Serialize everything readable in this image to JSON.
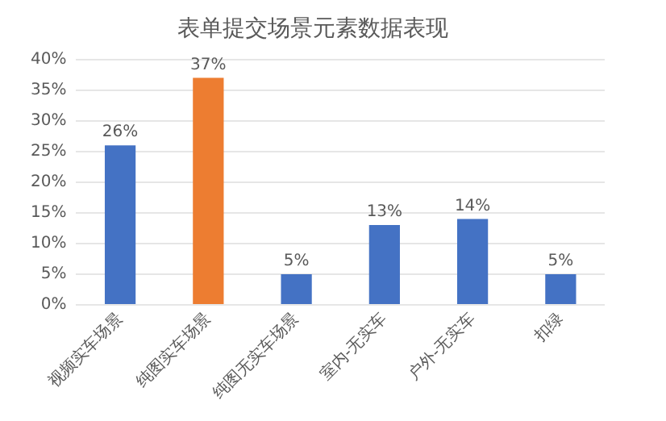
{
  "chart_data": {
    "type": "bar",
    "title": "表单提交场景元素数据表现",
    "categories": [
      "视频实车场景",
      "纯图实车场景",
      "纯图无实车场景",
      "室内-无实车",
      "户外-无实车",
      "扣绿"
    ],
    "values": [
      26,
      37,
      5,
      13,
      14,
      5
    ],
    "colors": [
      "#4472c4",
      "#ed7d31",
      "#4472c4",
      "#4472c4",
      "#4472c4",
      "#4472c4"
    ],
    "value_labels": [
      "26%",
      "37%",
      "5%",
      "13%",
      "14%",
      "5%"
    ],
    "ylim": [
      0,
      40
    ],
    "yticks": [
      {
        "value": 0,
        "label": "0%"
      },
      {
        "value": 5,
        "label": "5%"
      },
      {
        "value": 10,
        "label": "10%"
      },
      {
        "value": 15,
        "label": "15%"
      },
      {
        "value": 20,
        "label": "20%"
      },
      {
        "value": 25,
        "label": "25%"
      },
      {
        "value": 30,
        "label": "30%"
      },
      {
        "value": 35,
        "label": "35%"
      },
      {
        "value": 40,
        "label": "40%"
      }
    ],
    "grid": "y",
    "legend": false
  }
}
